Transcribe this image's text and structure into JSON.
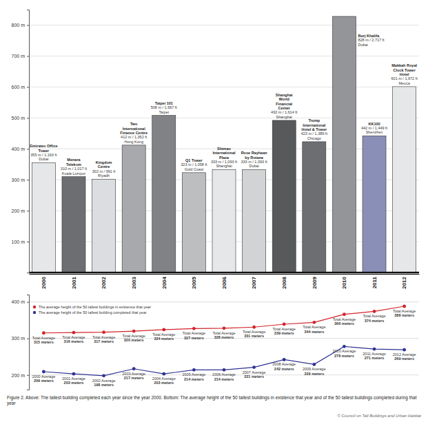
{
  "chart_data": [
    {
      "type": "bar",
      "categories": [
        "2000",
        "2001",
        "2002",
        "2003",
        "2004",
        "2005",
        "2006",
        "2007",
        "2008",
        "2009",
        "2010",
        "2011",
        "2012"
      ],
      "values": [
        355,
        310,
        302,
        412,
        508,
        323,
        333,
        333,
        492,
        423,
        828,
        442,
        601
      ],
      "names": [
        "Emirates Office Tower",
        "Menara Telekom",
        "Kingdom Centre",
        "Two International Finance Centre",
        "Taipei 101",
        "Q1 Tower",
        "Shimao International Plaza",
        "Rose Rayhaan by Rotana",
        "Shanghai World Financial Center",
        "Trump International Hotel & Tower",
        "Burj Khalifa",
        "KK100",
        "Makkah Royal Clock Tower Hotel"
      ],
      "height_labels": [
        "355 m / 1,163 ft",
        "310 m / 1,017 ft",
        "302 m / 991 ft",
        "412 m / 1,352 ft",
        "508 m / 1,667 ft",
        "323 m / 1,058 ft",
        "333 m / 1,093 ft",
        "333 m / 1,093 ft",
        "492 m / 1,614 ft",
        "423 m / 1,389 ft",
        "828 m / 2,717 ft",
        "442 m / 1,449 ft",
        "601 m / 1,972 ft"
      ],
      "cities": [
        "Dubai",
        "Kuala Lumpur",
        "Riyadh",
        "Hong Kong",
        "Taipei",
        "Gold Coast",
        "Shanghai",
        "Dubai",
        "Shanghai",
        "Chicago",
        "Dubai",
        "Shenzhen",
        "Mecca"
      ],
      "colors": [
        "#e6e7e9",
        "#6d6e71",
        "#dcdde0",
        "#a7a9ac",
        "#808285",
        "#bcbec0",
        "#e6e7e9",
        "#d1d3d4",
        "#58595b",
        "#6d6e71",
        "#939598",
        "#8a8fb8",
        "#e6e7e9"
      ],
      "ylim": [
        0,
        850
      ],
      "yticks": [
        {
          "value": 100,
          "label": "100 m"
        },
        {
          "value": 200,
          "label": "200 m"
        },
        {
          "value": 300,
          "label": "300 m"
        },
        {
          "value": 400,
          "label": "400 m"
        },
        {
          "value": 500,
          "label": "500 m"
        },
        {
          "value": 600,
          "label": "600 m"
        },
        {
          "value": 700,
          "label": "700 m"
        },
        {
          "value": 800,
          "label": "800 m"
        }
      ],
      "grid": true
    },
    {
      "type": "line",
      "categories": [
        "2000",
        "2001",
        "2002",
        "2003",
        "2004",
        "2005",
        "2006",
        "2007",
        "2008",
        "2009",
        "2010",
        "2011",
        "2012"
      ],
      "series": [
        {
          "name": "The average height of the 50 tallest buildings in existence that year",
          "color": "#d2232a",
          "marker": "circle",
          "line_style": "solid",
          "values": [
            315,
            316,
            317,
            320,
            324,
            327,
            328,
            331,
            339,
            344,
            366,
            374,
            388
          ],
          "value_labels": [
            "Total Average 315 meters",
            "Total Average 316 meters",
            "Total Average 317 meters",
            "Total Average 320 meters",
            "Total Average 324 meters",
            "Total Average 327 meters",
            "Total Average 328 meters",
            "Total Average 331 meters",
            "Total Average 339 meters",
            "Total Average 344 meters",
            "Total Average 366 meters",
            "Total Average 374 meters",
            "Total Average 388 meters"
          ]
        },
        {
          "name": "The average height of the 50 tallest building completed that year",
          "color": "#2e3192",
          "marker": "circle",
          "line_style": "solid",
          "values": [
            209,
            203,
            198,
            217,
            203,
            214,
            214,
            221,
            242,
            229,
            278,
            271,
            269
          ],
          "value_labels": [
            "2000 Average 209 meters",
            "2001 Average 203 meters",
            "2002 Average 198 meters",
            "2003 Average 217 meters",
            "2004 Average 203 meters",
            "2005 Average 214 meters",
            "2006 Average 214 meters",
            "2007 Average 221 meters",
            "2008 Average 242 meters",
            "2009 Average 229 meters",
            "2010 Average 278 meters",
            "2011 Average 271 meters",
            "2012 Average 269 meters"
          ]
        }
      ],
      "ylim": [
        160,
        420
      ],
      "yticks": [
        {
          "value": 200,
          "label": "200 m"
        },
        {
          "value": 300,
          "label": "300 m"
        },
        {
          "value": 400,
          "label": "400 m"
        }
      ],
      "grid": true,
      "legend": "upper left",
      "data_labels": true,
      "tick_labels": "y"
    }
  ],
  "caption": "Figure 2. Above: The tallest building completed each year since the year 2000. Bottom: The average height of the 50 tallest buildings in existence that year and of the 50 tallest buildings completed during that year",
  "credit": "© Council on Tall Buildings and Urban Habitat"
}
